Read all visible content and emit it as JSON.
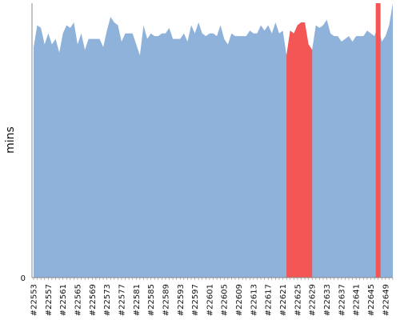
{
  "chart_data": {
    "type": "area",
    "ylabel": "mins",
    "y_tick_labels": [
      {
        "label": "0",
        "value": 0
      }
    ],
    "ylim": [
      0,
      100
    ],
    "x_tick_labels": [
      "#22553",
      "#22557",
      "#22561",
      "#22565",
      "#22569",
      "#22573",
      "#22577",
      "#22581",
      "#22585",
      "#22589",
      "#22593",
      "#22597",
      "#22601",
      "#22605",
      "#22609",
      "#22613",
      "#22617",
      "#22621",
      "#22625",
      "#22629",
      "#22633",
      "#22637",
      "#22641",
      "#22645",
      "#22649"
    ],
    "x_start": 22553,
    "x_end": 22651,
    "colors": {
      "normal": "#8fb2db",
      "highlight": "#f45555",
      "axis": "#888888"
    },
    "highlight_ranges": [
      [
        22622,
        22629
      ],
      [
        22647,
        22647
      ]
    ],
    "series": [
      {
        "values": [
          84,
          92,
          91,
          85,
          89,
          85,
          87,
          82,
          89,
          92,
          91,
          93,
          85,
          89,
          83,
          87,
          87,
          87,
          87,
          84,
          90,
          95,
          93,
          92,
          86,
          89,
          89,
          89,
          85,
          81,
          92,
          87,
          89,
          88,
          88,
          89,
          89,
          91,
          87,
          87,
          87,
          89,
          86,
          92,
          89,
          93,
          89,
          88,
          89,
          89,
          88,
          92,
          87,
          85,
          89,
          88,
          88,
          88,
          88,
          90,
          89,
          89,
          92,
          90,
          92,
          89,
          93,
          89,
          90,
          81,
          90,
          89,
          92,
          93,
          93,
          85,
          83,
          92,
          91,
          92,
          94,
          89,
          88,
          88,
          86,
          87,
          88,
          86,
          88,
          88,
          88,
          90,
          89,
          88,
          92,
          86,
          88,
          92,
          100
        ]
      }
    ]
  }
}
